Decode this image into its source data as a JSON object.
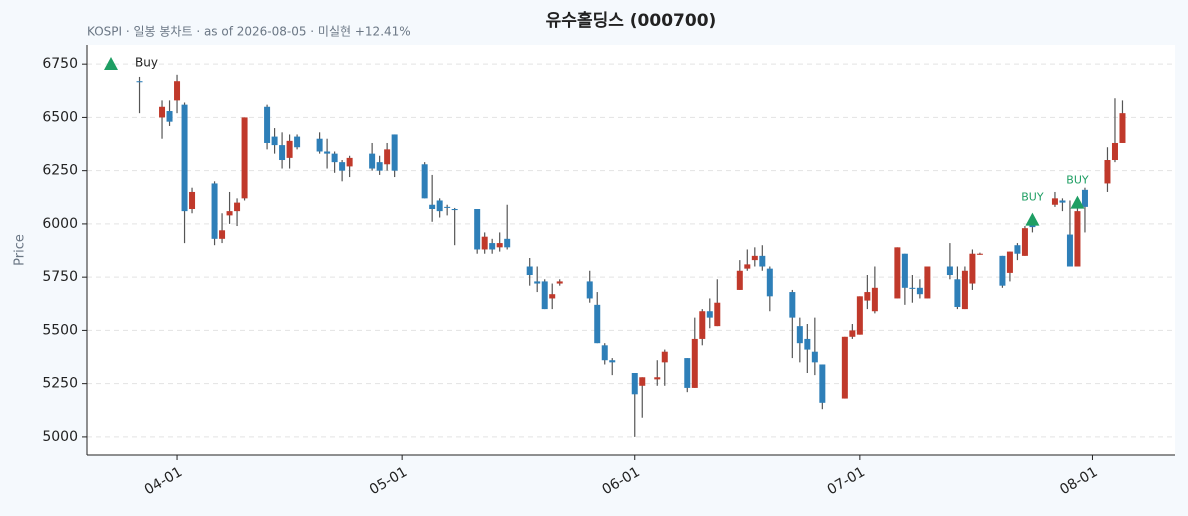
{
  "chart_data": {
    "type": "candlestick",
    "title": "유수홀딩스 (000700)",
    "subtitle": "KOSPI · 일봉 봉차트 · as of 2026-08-05 · 미실현 +12.41%",
    "y_label": "Price",
    "x": [
      "03-27",
      "03-30",
      "03-31",
      "04-01",
      "04-02",
      "04-03",
      "04-06",
      "04-07",
      "04-08",
      "04-09",
      "04-10",
      "04-13",
      "04-14",
      "04-15",
      "04-16",
      "04-17",
      "04-20",
      "04-21",
      "04-22",
      "04-23",
      "04-24",
      "04-27",
      "04-28",
      "04-29",
      "04-30",
      "05-04",
      "05-05",
      "05-06",
      "05-07",
      "05-08",
      "05-11",
      "05-12",
      "05-13",
      "05-14",
      "05-15",
      "05-18",
      "05-19",
      "05-20",
      "05-21",
      "05-22",
      "05-26",
      "05-27",
      "05-28",
      "05-29",
      "06-01",
      "06-02",
      "06-04",
      "06-05",
      "06-08",
      "06-09",
      "06-10",
      "06-11",
      "06-12",
      "06-15",
      "06-16",
      "06-17",
      "06-18",
      "06-19",
      "06-22",
      "06-23",
      "06-24",
      "06-25",
      "06-26",
      "06-29",
      "06-30",
      "07-01",
      "07-02",
      "07-03",
      "07-06",
      "07-07",
      "07-08",
      "07-09",
      "07-10",
      "07-13",
      "07-14",
      "07-15",
      "07-16",
      "07-17",
      "07-20",
      "07-21",
      "07-22",
      "07-23",
      "07-24",
      "07-27",
      "07-28",
      "07-29",
      "07-30",
      "07-31",
      "08-03",
      "08-04",
      "08-05"
    ],
    "open": [
      6670,
      6500,
      6530,
      6580,
      6560,
      6070,
      6190,
      5930,
      6040,
      6060,
      6120,
      6550,
      6410,
      6370,
      6310,
      6410,
      6400,
      6340,
      6330,
      6290,
      6270,
      6330,
      6290,
      6280,
      6420,
      6280,
      6090,
      6110,
      6080,
      6070,
      6070,
      5880,
      5910,
      5890,
      5930,
      5800,
      5730,
      5730,
      5650,
      5720,
      5730,
      5620,
      5430,
      5360,
      5300,
      5240,
      5270,
      5350,
      5370,
      5230,
      5460,
      5590,
      5520,
      5690,
      5790,
      5830,
      5850,
      5790,
      5680,
      5520,
      5460,
      5400,
      5340,
      5180,
      5470,
      5480,
      5640,
      5590,
      5650,
      5860,
      5700,
      5700,
      5650,
      5800,
      5740,
      5600,
      5720,
      5855,
      5850,
      5770,
      5900,
      5850,
      5995,
      6090,
      6110,
      5950,
      5800,
      6160,
      6190,
      6300,
      6380
    ],
    "high": [
      6690,
      6580,
      6580,
      6700,
      6570,
      6170,
      6200,
      6050,
      6150,
      6120,
      6500,
      6560,
      6450,
      6430,
      6420,
      6420,
      6430,
      6400,
      6340,
      6300,
      6320,
      6380,
      6320,
      6380,
      6420,
      6290,
      6230,
      6120,
      6090,
      6075,
      6070,
      5960,
      5930,
      5960,
      6090,
      5840,
      5800,
      5740,
      5720,
      5740,
      5780,
      5680,
      5440,
      5370,
      5300,
      5280,
      5360,
      5410,
      5370,
      5560,
      5600,
      5650,
      5740,
      5830,
      5880,
      5890,
      5900,
      5800,
      5690,
      5560,
      5530,
      5560,
      5340,
      5470,
      5530,
      5660,
      5760,
      5800,
      5890,
      5860,
      5760,
      5740,
      5800,
      5910,
      5800,
      5800,
      5880,
      5865,
      5850,
      5870,
      5910,
      5990,
      6010,
      6150,
      6120,
      6110,
      6110,
      6170,
      6360,
      6590,
      6580
    ],
    "low": [
      6520,
      6400,
      6460,
      6520,
      5910,
      6050,
      5900,
      5910,
      6000,
      5990,
      6110,
      6350,
      6330,
      6260,
      6260,
      6350,
      6330,
      6260,
      6240,
      6200,
      6220,
      6250,
      6230,
      6250,
      6220,
      6120,
      6010,
      6030,
      6040,
      5900,
      5860,
      5860,
      5860,
      5870,
      5880,
      5710,
      5680,
      5600,
      5600,
      5710,
      5630,
      5440,
      5340,
      5290,
      5000,
      5090,
      5240,
      5240,
      5210,
      5230,
      5430,
      5510,
      5520,
      5690,
      5780,
      5800,
      5780,
      5590,
      5370,
      5350,
      5300,
      5290,
      5130,
      5180,
      5460,
      5480,
      5600,
      5580,
      5650,
      5620,
      5630,
      5650,
      5650,
      5740,
      5600,
      5600,
      5690,
      5855,
      5700,
      5730,
      5830,
      5850,
      5960,
      6080,
      6060,
      5800,
      5800,
      5960,
      6150,
      6290,
      6380
    ],
    "close": [
      6665,
      6550,
      6480,
      6670,
      6060,
      6150,
      5930,
      5970,
      6060,
      6100,
      6500,
      6380,
      6370,
      6300,
      6390,
      6360,
      6340,
      6330,
      6290,
      6250,
      6310,
      6260,
      6250,
      6350,
      6250,
      6120,
      6070,
      6060,
      6075,
      6065,
      5880,
      5940,
      5880,
      5910,
      5890,
      5760,
      5720,
      5600,
      5670,
      5730,
      5650,
      5440,
      5360,
      5350,
      5200,
      5280,
      5280,
      5400,
      5230,
      5460,
      5590,
      5560,
      5630,
      5780,
      5810,
      5850,
      5800,
      5660,
      5560,
      5440,
      5410,
      5350,
      5160,
      5470,
      5500,
      5660,
      5680,
      5700,
      5890,
      5700,
      5695,
      5670,
      5800,
      5760,
      5610,
      5780,
      5860,
      5860,
      5710,
      5870,
      5860,
      5980,
      5985,
      6120,
      6100,
      5800,
      6060,
      6080,
      6300,
      6380,
      6520
    ],
    "up_color": "#c0392b",
    "down_color": "#2e7fb8",
    "wick_color": "#555555",
    "markers": {
      "name": "Buy",
      "color": "#1e9e63",
      "x": [
        "07-24",
        "07-30"
      ],
      "values": [
        6020,
        6100
      ],
      "labels": [
        "BUY",
        "BUY"
      ]
    },
    "legend": "upper left",
    "xlim": [
      "03-20",
      "08-12"
    ],
    "xticks": [
      "04-01",
      "05-01",
      "06-01",
      "07-01",
      "08-01"
    ],
    "ylim": [
      4915,
      6840
    ],
    "yticks": [
      5000,
      5250,
      5500,
      5750,
      6000,
      6250,
      6500,
      6750
    ],
    "grid": true
  }
}
